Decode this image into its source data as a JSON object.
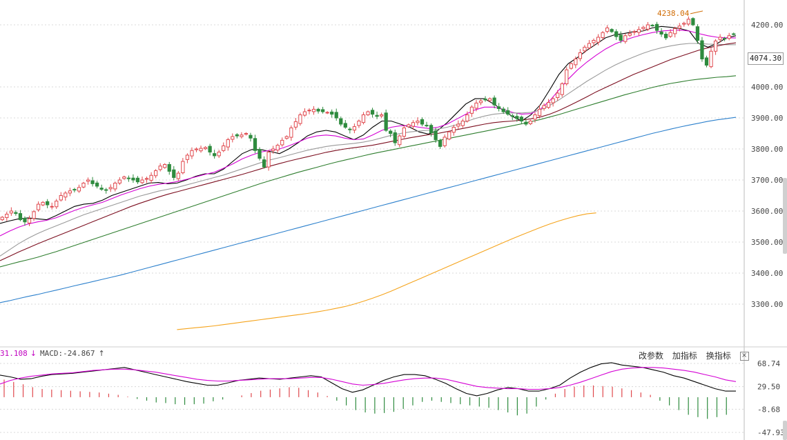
{
  "colors": {
    "up": "#e0474c",
    "down": "#2e8b3e",
    "ma5": "#000000",
    "ma10": "#d400d4",
    "ma20": "#999999",
    "ma30": "#7b0d1e",
    "ma60": "#2d7d2d",
    "ma120": "#2a7fcc",
    "ma250": "#f5a31a",
    "dif": "#000000",
    "dea": "#d400d4",
    "annotation": "#d06a00"
  },
  "macd_header": {
    "value1": "31.108",
    "down_arrow": "↓",
    "macd_text": "MACD:-24.867",
    "up_arrow": "↑"
  },
  "macd_tools": {
    "params": "改参数",
    "add": "加指标",
    "switch": "换指标",
    "close": "×"
  },
  "price_tag": "4074.30",
  "chart_data": [
    {
      "type": "candlestick",
      "title": "",
      "ylim": [
        3200,
        4260
      ],
      "y_ticks": [
        "4200.00",
        "4000.00",
        "3900.00",
        "3800.00",
        "3700.00",
        "3600.00",
        "3500.00",
        "3400.00",
        "3300.00"
      ],
      "y_tick_values": [
        4200,
        4000,
        3900,
        3800,
        3700,
        3600,
        3500,
        3400,
        3300
      ],
      "grid": true,
      "annotation": {
        "text": "4238.04",
        "value": 4238.04
      },
      "current_price": 4074.3,
      "close_path": [
        3580,
        3590,
        3600,
        3592,
        3572,
        3565,
        3575,
        3598,
        3622,
        3628,
        3620,
        3615,
        3632,
        3650,
        3658,
        3665,
        3668,
        3676,
        3690,
        3700,
        3688,
        3680,
        3670,
        3668,
        3676,
        3690,
        3700,
        3710,
        3705,
        3700,
        3694,
        3700,
        3705,
        3715,
        3730,
        3745,
        3750,
        3728,
        3708,
        3722,
        3760,
        3780,
        3795,
        3800,
        3802,
        3805,
        3790,
        3778,
        3790,
        3810,
        3830,
        3840,
        3842,
        3845,
        3850,
        3835,
        3795,
        3770,
        3742,
        3790,
        3800,
        3812,
        3828,
        3840,
        3868,
        3888,
        3910,
        3920,
        3925,
        3928,
        3922,
        3920,
        3918,
        3912,
        3900,
        3880,
        3870,
        3862,
        3872,
        3890,
        3910,
        3920,
        3912,
        3905,
        3910,
        3860,
        3850,
        3820,
        3842,
        3868,
        3878,
        3885,
        3890,
        3880,
        3875,
        3852,
        3830,
        3808,
        3838,
        3855,
        3870,
        3880,
        3890,
        3910,
        3935,
        3948,
        3955,
        3958,
        3962,
        3942,
        3930,
        3920,
        3912,
        3905,
        3898,
        3890,
        3880,
        3890,
        3910,
        3928,
        3940,
        3950,
        3962,
        3980,
        4010,
        4055,
        4075,
        4090,
        4110,
        4128,
        4140,
        4150,
        4160,
        4175,
        4190,
        4178,
        4162,
        4150,
        4165,
        4172,
        4178,
        4185,
        4192,
        4200,
        4198,
        4182,
        4170,
        4158,
        4175,
        4188,
        4196,
        4205,
        4218,
        4200,
        4150,
        4090,
        4070,
        4115,
        4148,
        4160,
        4155,
        4165,
        4170
      ],
      "series": [
        {
          "name": "MA5",
          "values": [
            3560,
            3568,
            3575,
            3578,
            3575,
            3572,
            3585,
            3600,
            3615,
            3622,
            3625,
            3635,
            3650,
            3660,
            3670,
            3680,
            3690,
            3692,
            3688,
            3690,
            3700,
            3712,
            3720,
            3720,
            3735,
            3760,
            3785,
            3798,
            3798,
            3792,
            3785,
            3800,
            3820,
            3842,
            3855,
            3860,
            3855,
            3842,
            3830,
            3845,
            3870,
            3890,
            3890,
            3880,
            3870,
            3855,
            3848,
            3860,
            3885,
            3915,
            3945,
            3962,
            3962,
            3945,
            3925,
            3905,
            3890,
            3910,
            3942,
            3990,
            4040,
            4075,
            4095,
            4118,
            4138,
            4158,
            4168,
            4172,
            4178,
            4180,
            4190,
            4195,
            4192,
            4188,
            4180,
            4140,
            4128,
            4140,
            4158,
            4165
          ]
        },
        {
          "name": "MA10",
          "values": [
            3520,
            3535,
            3548,
            3558,
            3565,
            3570,
            3578,
            3590,
            3602,
            3612,
            3620,
            3628,
            3640,
            3652,
            3662,
            3672,
            3680,
            3686,
            3690,
            3695,
            3702,
            3710,
            3718,
            3725,
            3738,
            3752,
            3768,
            3780,
            3790,
            3796,
            3800,
            3810,
            3822,
            3835,
            3842,
            3845,
            3842,
            3835,
            3830,
            3832,
            3845,
            3860,
            3870,
            3875,
            3875,
            3870,
            3866,
            3870,
            3880,
            3896,
            3912,
            3926,
            3935,
            3935,
            3928,
            3918,
            3912,
            3914,
            3928,
            3955,
            3990,
            4025,
            4055,
            4080,
            4102,
            4122,
            4138,
            4150,
            4160,
            4168,
            4175,
            4180,
            4182,
            4183,
            4180,
            4172,
            4165,
            4160,
            4158,
            4158
          ]
        },
        {
          "name": "MA20",
          "values": [
            3455,
            3475,
            3495,
            3512,
            3527,
            3540,
            3552,
            3564,
            3576,
            3588,
            3598,
            3608,
            3618,
            3628,
            3638,
            3648,
            3656,
            3664,
            3670,
            3676,
            3684,
            3692,
            3700,
            3708,
            3716,
            3726,
            3736,
            3746,
            3756,
            3765,
            3772,
            3780,
            3788,
            3796,
            3802,
            3808,
            3812,
            3815,
            3818,
            3822,
            3828,
            3836,
            3844,
            3850,
            3855,
            3858,
            3860,
            3864,
            3870,
            3878,
            3888,
            3898,
            3906,
            3912,
            3915,
            3916,
            3916,
            3918,
            3926,
            3940,
            3958,
            3978,
            3998,
            4018,
            4036,
            4054,
            4070,
            4084,
            4096,
            4108,
            4118,
            4126,
            4132,
            4137,
            4140,
            4140,
            4138,
            4137,
            4136,
            4136
          ]
        },
        {
          "name": "MA30",
          "values": [
            3440,
            3454,
            3468,
            3481,
            3494,
            3506,
            3518,
            3530,
            3542,
            3554,
            3566,
            3578,
            3590,
            3602,
            3614,
            3625,
            3635,
            3645,
            3654,
            3662,
            3670,
            3678,
            3686,
            3694,
            3702,
            3710,
            3718,
            3727,
            3736,
            3745,
            3753,
            3761,
            3768,
            3775,
            3782,
            3789,
            3795,
            3800,
            3804,
            3808,
            3812,
            3818,
            3824,
            3830,
            3836,
            3841,
            3846,
            3850,
            3856,
            3862,
            3868,
            3874,
            3880,
            3885,
            3888,
            3890,
            3893,
            3897,
            3903,
            3912,
            3924,
            3938,
            3953,
            3968,
            3984,
            3998,
            4012,
            4026,
            4040,
            4052,
            4064,
            4076,
            4088,
            4098,
            4108,
            4118,
            4126,
            4132,
            4138,
            4142
          ]
        },
        {
          "name": "MA60",
          "values": [
            3420,
            3428,
            3436,
            3443,
            3451,
            3460,
            3469,
            3479,
            3489,
            3499,
            3509,
            3519,
            3529,
            3539,
            3549,
            3559,
            3569,
            3579,
            3589,
            3599,
            3609,
            3619,
            3629,
            3639,
            3649,
            3659,
            3669,
            3679,
            3689,
            3698,
            3707,
            3716,
            3725,
            3733,
            3741,
            3749,
            3757,
            3764,
            3771,
            3778,
            3785,
            3791,
            3797,
            3803,
            3809,
            3815,
            3821,
            3827,
            3833,
            3839,
            3845,
            3851,
            3857,
            3863,
            3869,
            3875,
            3881,
            3888,
            3895,
            3903,
            3911,
            3920,
            3929,
            3938,
            3947,
            3956,
            3965,
            3974,
            3982,
            3990,
            3998,
            4005,
            4011,
            4016,
            4021,
            4025,
            4028,
            4031,
            4033,
            4036
          ]
        },
        {
          "name": "MA120",
          "values": [
            3305,
            3311,
            3318,
            3325,
            3331,
            3338,
            3345,
            3352,
            3359,
            3366,
            3373,
            3380,
            3387,
            3394,
            3402,
            3410,
            3418,
            3426,
            3434,
            3442,
            3450,
            3458,
            3466,
            3474,
            3482,
            3490,
            3498,
            3506,
            3514,
            3522,
            3530,
            3538,
            3546,
            3554,
            3562,
            3570,
            3578,
            3586,
            3594,
            3602,
            3610,
            3618,
            3626,
            3634,
            3642,
            3650,
            3658,
            3666,
            3674,
            3682,
            3690,
            3698,
            3706,
            3714,
            3722,
            3730,
            3738,
            3746,
            3754,
            3762,
            3770,
            3778,
            3786,
            3794,
            3802,
            3810,
            3818,
            3826,
            3834,
            3842,
            3850,
            3857,
            3864,
            3871,
            3877,
            3883,
            3889,
            3894,
            3898,
            3902
          ]
        },
        {
          "name": "MA250",
          "start_index": 19,
          "values": [
            3218,
            3221,
            3224,
            3227,
            3230,
            3234,
            3238,
            3242,
            3246,
            3250,
            3254,
            3258,
            3262,
            3266,
            3270,
            3275,
            3280,
            3286,
            3292,
            3300,
            3309,
            3319,
            3330,
            3342,
            3355,
            3368,
            3381,
            3394,
            3407,
            3420,
            3433,
            3446,
            3459,
            3472,
            3485,
            3498,
            3511,
            3523,
            3535,
            3547,
            3558,
            3568,
            3577,
            3585,
            3591,
            3594
          ]
        }
      ]
    },
    {
      "type": "macd",
      "title": "",
      "ylim": [
        -52,
        74
      ],
      "y_ticks": [
        "68.74",
        "29.50",
        "-8.68",
        "-47.93"
      ],
      "y_tick_values": [
        68.74,
        29.5,
        -8.68,
        -47.93
      ],
      "grid": true,
      "series": [
        {
          "name": "DIF",
          "values": [
            49,
            46,
            42,
            43,
            47,
            50,
            51,
            52,
            54,
            56,
            58,
            60,
            62,
            58,
            54,
            50,
            46,
            42,
            38,
            35,
            32,
            32,
            36,
            40,
            42,
            44,
            43,
            42,
            44,
            46,
            48,
            46,
            36,
            26,
            20,
            24,
            32,
            40,
            46,
            50,
            50,
            48,
            42,
            35,
            26,
            18,
            14,
            18,
            24,
            28,
            26,
            22,
            22,
            26,
            32,
            44,
            54,
            62,
            68,
            70,
            66,
            64,
            62,
            58,
            54,
            48,
            44,
            38,
            32,
            26,
            22,
            22
          ]
        },
        {
          "name": "DEA",
          "values": [
            34,
            40,
            44,
            47,
            49,
            51,
            52,
            53,
            55,
            57,
            58,
            59,
            59,
            58,
            56,
            54,
            51,
            48,
            45,
            42,
            40,
            39,
            39,
            40,
            41,
            42,
            43,
            43,
            43,
            44,
            45,
            45,
            42,
            38,
            34,
            32,
            33,
            35,
            38,
            41,
            43,
            44,
            44,
            42,
            38,
            34,
            30,
            28,
            27,
            26,
            26,
            25,
            25,
            26,
            28,
            32,
            37,
            43,
            49,
            55,
            59,
            61,
            62,
            62,
            61,
            59,
            57,
            54,
            50,
            46,
            41,
            38
          ]
        },
        {
          "name": "MACD",
          "values": [
            30,
            26,
            22,
            17,
            14,
            13,
            12,
            11,
            10,
            9,
            8,
            6,
            4,
            1,
            -3,
            -6,
            -9,
            -10,
            -12,
            -13,
            -12,
            -11,
            -7,
            -4,
            0,
            3,
            7,
            11,
            13,
            15,
            17,
            16,
            12,
            8,
            2,
            -6,
            -14,
            -22,
            -26,
            -28,
            -27,
            -25,
            -20,
            -14,
            -8,
            -6,
            -8,
            -10,
            -12,
            -14,
            -16,
            -18,
            -22,
            -26,
            -31,
            -28,
            -16,
            -4,
            6,
            14,
            18,
            20,
            20,
            19,
            18,
            15,
            12,
            8,
            4,
            -6,
            -14,
            -22,
            -30,
            -34,
            -37,
            -34,
            -30
          ]
        }
      ]
    }
  ]
}
